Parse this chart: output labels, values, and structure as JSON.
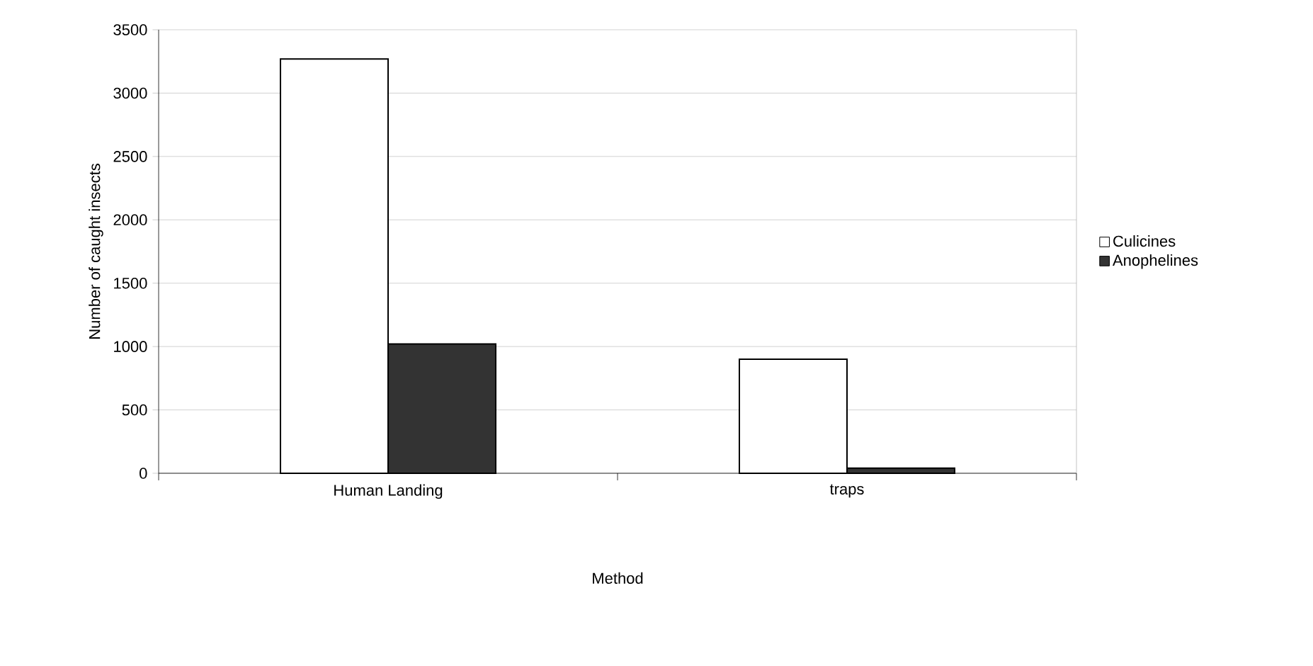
{
  "chart_data": {
    "type": "bar",
    "xlabel": "Method",
    "ylabel": "Number of caught insects",
    "categories": [
      "Human Landing",
      "traps"
    ],
    "series": [
      {
        "name": "Culicines",
        "color": "#ffffff",
        "values": [
          3270,
          900
        ]
      },
      {
        "name": "Anophelines",
        "color": "#333333",
        "values": [
          1020,
          40
        ]
      }
    ],
    "ylim": [
      0,
      3500
    ],
    "yticks": [
      0,
      500,
      1000,
      1500,
      2000,
      2500,
      3000,
      3500
    ],
    "grid": "y",
    "legend": "right"
  }
}
